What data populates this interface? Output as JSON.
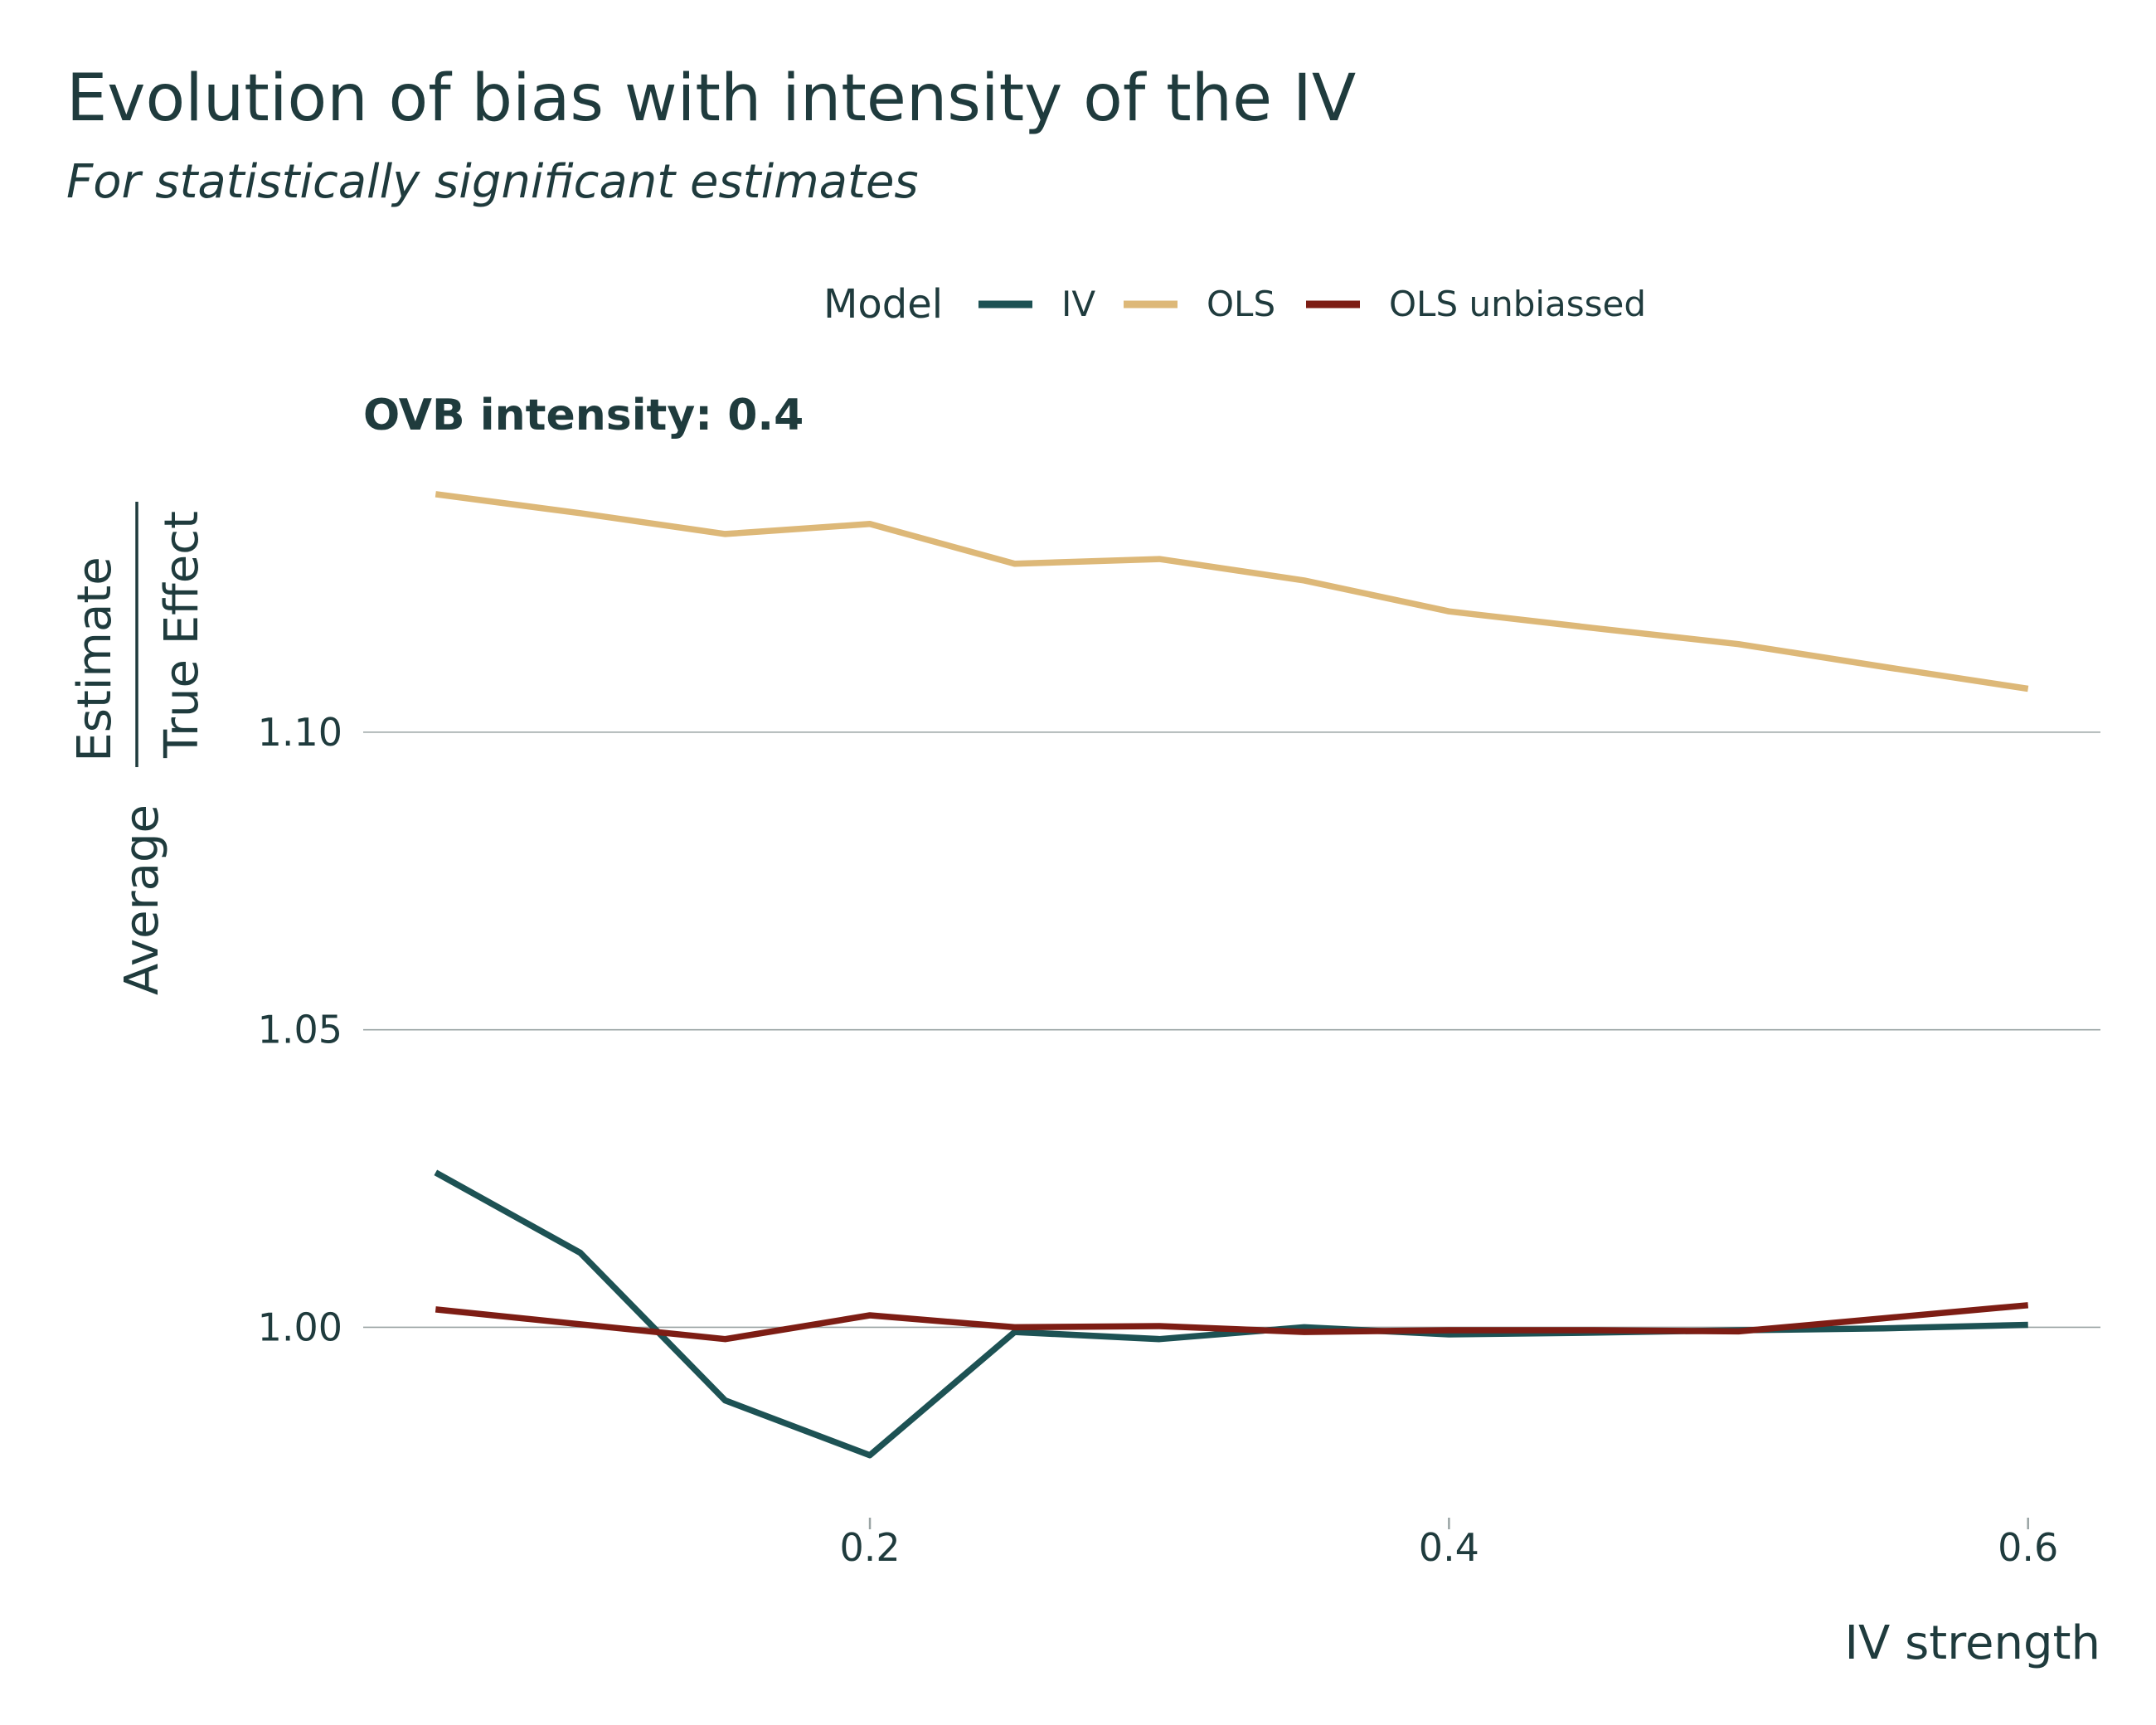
{
  "title": "Evolution of bias with intensity of the IV",
  "subtitle": "For statistically significant estimates",
  "legend": {
    "title": "Model"
  },
  "chart_data": {
    "type": "line",
    "title": "Evolution of bias with intensity of the IV",
    "subtitle": "For statistically significant estimates",
    "facet_label": "OVB intensity: 0.4",
    "xlabel": "IV strength",
    "ylabel_numerator": "Estimate",
    "ylabel_denominator": "True Effect",
    "ylabel_prefix": "Average",
    "xlim": [
      0.025,
      0.625
    ],
    "ylim": [
      0.968,
      1.145
    ],
    "x_ticks": [
      0.2,
      0.4,
      0.6
    ],
    "x_tick_labels": [
      "0.2",
      "0.4",
      "0.6"
    ],
    "y_ticks": [
      1.0,
      1.05,
      1.1
    ],
    "y_tick_labels": [
      "1.00",
      "1.05",
      "1.10"
    ],
    "grid": "horizontal",
    "legend_position": "top",
    "x": [
      0.05,
      0.1,
      0.15,
      0.2,
      0.25,
      0.3,
      0.35,
      0.4,
      0.45,
      0.5,
      0.55,
      0.6
    ],
    "series": [
      {
        "name": "IV",
        "color": "#1d5254",
        "values": [
          1.026,
          1.0125,
          0.9877,
          0.9785,
          0.9992,
          0.998,
          1.0,
          0.9988,
          0.9991,
          0.9995,
          0.9998,
          1.0004
        ]
      },
      {
        "name": "OLS",
        "color": "#ddb878",
        "values": [
          1.14,
          1.1368,
          1.1333,
          1.135,
          1.1283,
          1.1291,
          1.1255,
          1.1203,
          1.1175,
          1.1148,
          1.111,
          1.1073
        ]
      },
      {
        "name": "OLS unbiassed",
        "color": "#7d1d14",
        "values": [
          1.003,
          1.0005,
          0.998,
          1.002,
          1.0,
          1.0002,
          0.9992,
          0.9995,
          0.9995,
          0.9993,
          1.0015,
          1.0037
        ]
      }
    ]
  }
}
